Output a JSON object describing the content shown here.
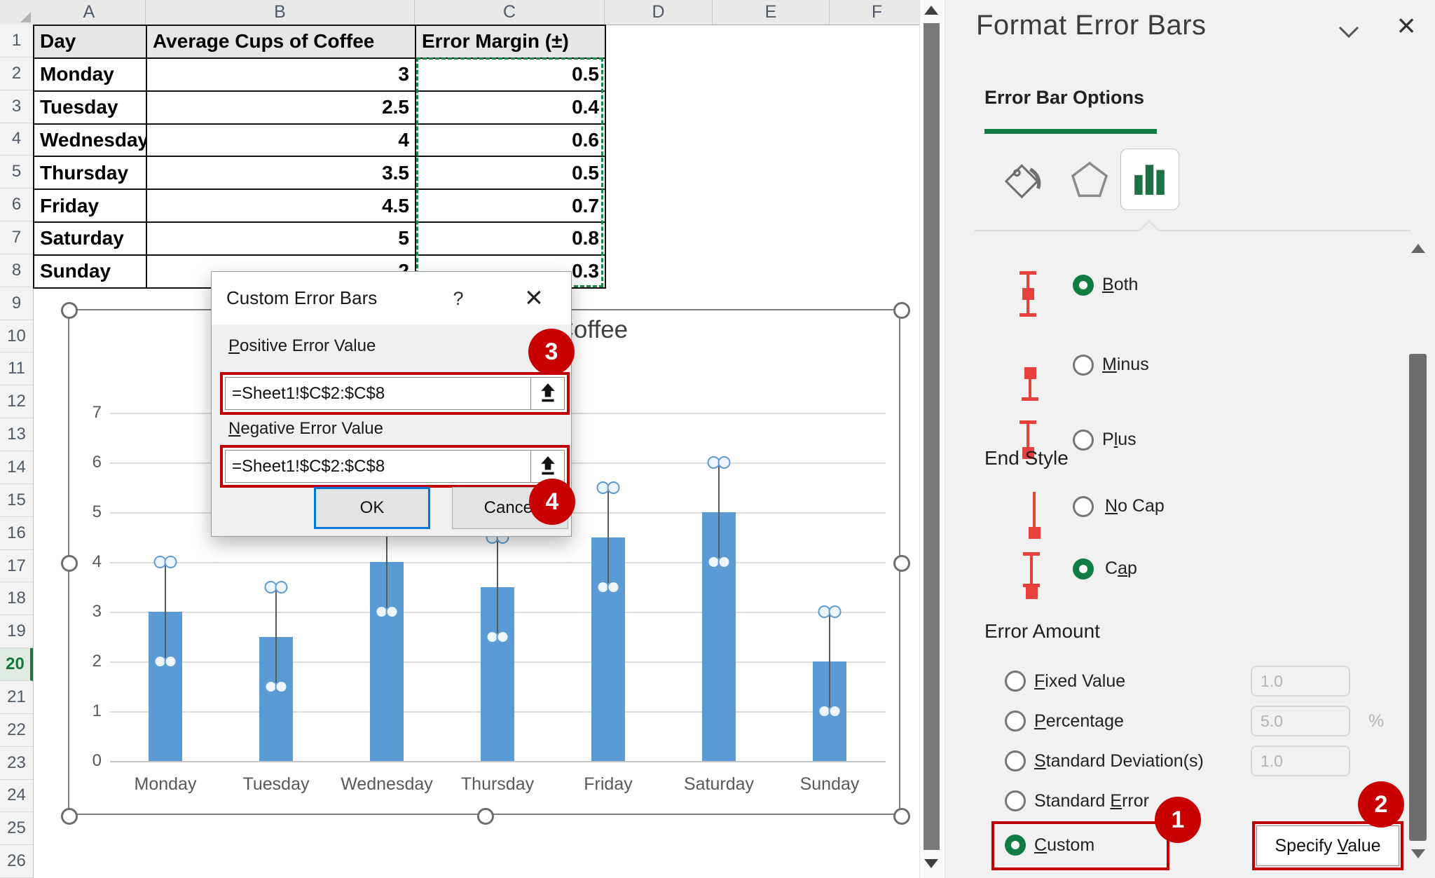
{
  "sheet": {
    "columns": [
      "A",
      "B",
      "C",
      "D",
      "E",
      "F"
    ],
    "row_count": 26,
    "active_row": 20,
    "table": {
      "headers": [
        "Day",
        "Average Cups of Coffee",
        "Error Margin (±)"
      ],
      "rows": [
        {
          "day": "Monday",
          "cups": "3",
          "margin": "0.5"
        },
        {
          "day": "Tuesday",
          "cups": "2.5",
          "margin": "0.4"
        },
        {
          "day": "Wednesday",
          "cups": "4",
          "margin": "0.6"
        },
        {
          "day": "Thursday",
          "cups": "3.5",
          "margin": "0.5"
        },
        {
          "day": "Friday",
          "cups": "4.5",
          "margin": "0.7"
        },
        {
          "day": "Saturday",
          "cups": "5",
          "margin": "0.8"
        },
        {
          "day": "Sunday",
          "cups": "2",
          "margin": "0.3"
        }
      ]
    }
  },
  "chart_data": {
    "type": "bar",
    "title": "Average Cups of Coffee",
    "categories": [
      "Monday",
      "Tuesday",
      "Wednesday",
      "Thursday",
      "Friday",
      "Saturday",
      "Sunday"
    ],
    "values": [
      3,
      2.5,
      4,
      3.5,
      4.5,
      5,
      2
    ],
    "error_bar_displayed": 1.0,
    "xlabel": "",
    "ylabel": "",
    "ylim": [
      0,
      7
    ],
    "ytick_step": 1,
    "grid": "horizontal",
    "legend": "none",
    "bar_color": "#5B9BD5"
  },
  "dialog": {
    "title": "Custom Error Bars",
    "help_label": "?",
    "close_label": "×",
    "positive_label": "Positive Error Value",
    "positive_value": "=Sheet1!$C$2:$C$8",
    "negative_label": "Negative Error Value",
    "negative_value": "=Sheet1!$C$2:$C$8",
    "ok_label": "OK",
    "cancel_label": "Cancel"
  },
  "panel": {
    "title": "Format Error Bars",
    "close_label": "×",
    "tab_label": "Error Bar Options",
    "direction_options": [
      {
        "label": "Both",
        "selected": true
      },
      {
        "label": "Minus",
        "selected": false
      },
      {
        "label": "Plus",
        "selected": false
      }
    ],
    "end_style": {
      "heading": "End Style",
      "options": [
        {
          "label": "No Cap",
          "selected": false
        },
        {
          "label": "Cap",
          "selected": true
        }
      ]
    },
    "error_amount": {
      "heading": "Error Amount",
      "options": [
        {
          "label": "Fixed Value",
          "value": "1.0",
          "selected": false
        },
        {
          "label": "Percentage",
          "value": "5.0",
          "suffix": "%",
          "selected": false
        },
        {
          "label": "Standard Deviation(s)",
          "value": "1.0",
          "selected": false
        },
        {
          "label": "Standard Error",
          "selected": false
        },
        {
          "label": "Custom",
          "selected": true
        }
      ]
    },
    "specify_value_label": "Specify Value"
  },
  "annotations": {
    "badge_1": "1",
    "badge_2": "2",
    "badge_3": "3",
    "badge_4": "4",
    "color": "#C00000"
  }
}
